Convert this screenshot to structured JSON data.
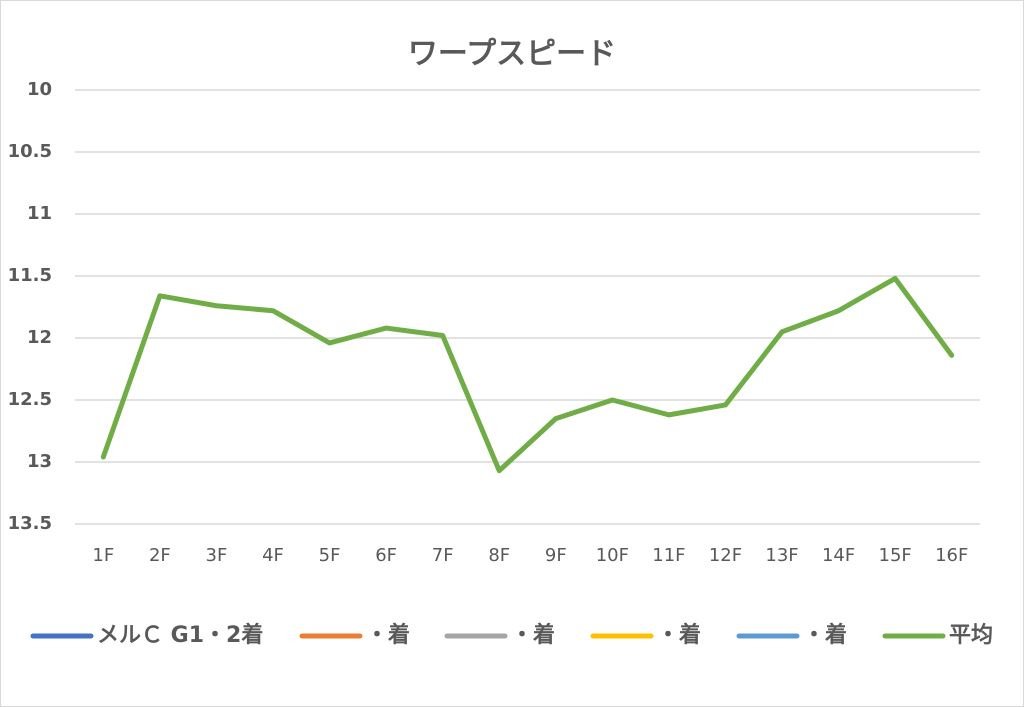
{
  "chart_data": {
    "type": "line",
    "title": "ワープスピード",
    "categories": [
      "1F",
      "2F",
      "3F",
      "4F",
      "5F",
      "6F",
      "7F",
      "8F",
      "9F",
      "10F",
      "11F",
      "12F",
      "13F",
      "14F",
      "15F",
      "16F"
    ],
    "series": [
      {
        "name": "メルＣ G1・2着",
        "color": "#4472c4",
        "values": [
          null,
          null,
          null,
          null,
          null,
          null,
          null,
          null,
          null,
          null,
          null,
          null,
          null,
          null,
          null,
          null
        ]
      },
      {
        "name": "・着",
        "color": "#ed7d31",
        "values": [
          null,
          null,
          null,
          null,
          null,
          null,
          null,
          null,
          null,
          null,
          null,
          null,
          null,
          null,
          null,
          null
        ]
      },
      {
        "name": "・着",
        "color": "#a5a5a5",
        "values": [
          null,
          null,
          null,
          null,
          null,
          null,
          null,
          null,
          null,
          null,
          null,
          null,
          null,
          null,
          null,
          null
        ]
      },
      {
        "name": "・着",
        "color": "#ffc000",
        "values": [
          null,
          null,
          null,
          null,
          null,
          null,
          null,
          null,
          null,
          null,
          null,
          null,
          null,
          null,
          null,
          null
        ]
      },
      {
        "name": "・着",
        "color": "#5b9bd5",
        "values": [
          null,
          null,
          null,
          null,
          null,
          null,
          null,
          null,
          null,
          null,
          null,
          null,
          null,
          null,
          null,
          null
        ]
      },
      {
        "name": "平均",
        "color": "#70ad47",
        "values": [
          12.96,
          11.66,
          11.74,
          11.78,
          12.04,
          11.92,
          11.98,
          13.07,
          12.65,
          12.5,
          12.62,
          12.54,
          11.95,
          11.78,
          11.52,
          12.14
        ]
      }
    ],
    "ylim": [
      13.5,
      10
    ],
    "yticks": [
      10,
      10.5,
      11,
      11.5,
      12,
      12.5,
      13,
      13.5
    ],
    "grid": true,
    "legend": "bottom"
  }
}
